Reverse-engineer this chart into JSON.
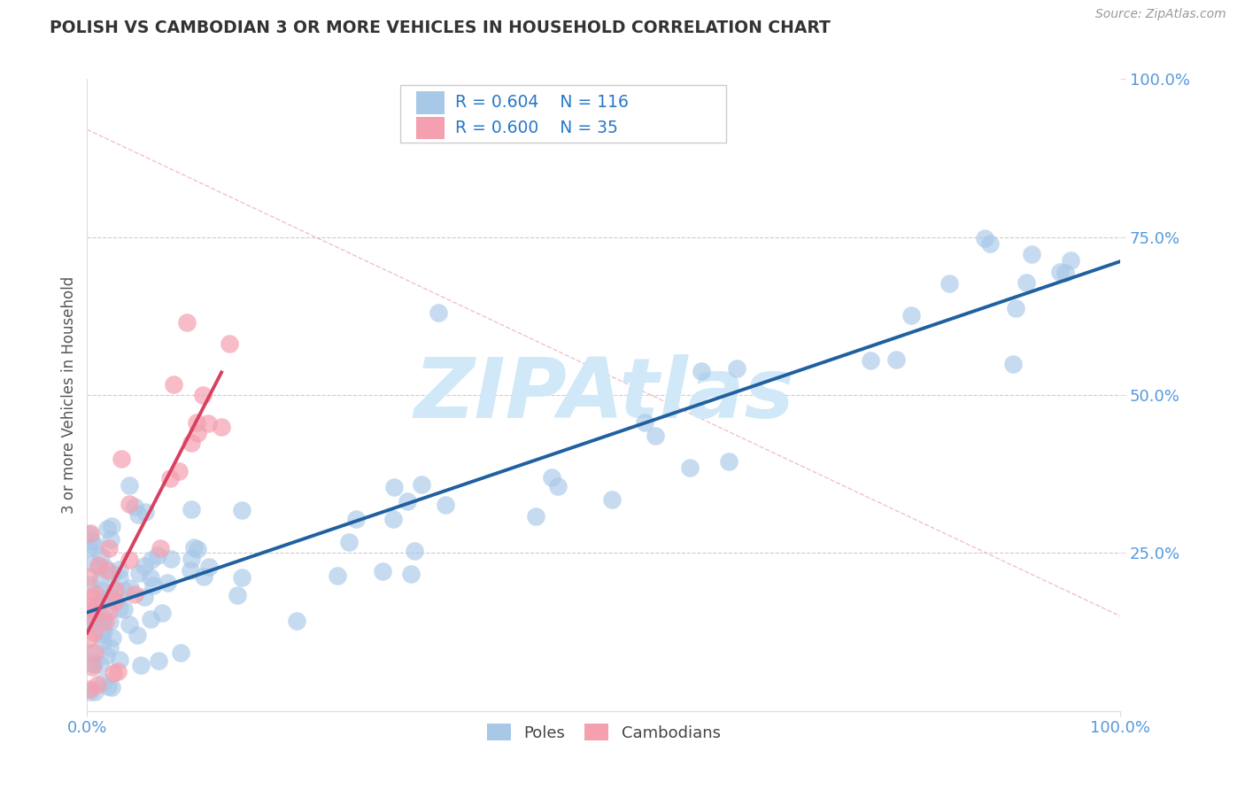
{
  "title": "POLISH VS CAMBODIAN 3 OR MORE VEHICLES IN HOUSEHOLD CORRELATION CHART",
  "source": "Source: ZipAtlas.com",
  "ylabel": "3 or more Vehicles in Household",
  "poles_R": 0.604,
  "poles_N": 116,
  "cambodians_R": 0.6,
  "cambodians_N": 35,
  "poles_color": "#a8c8e8",
  "poles_line_color": "#2060a0",
  "cambodians_color": "#f4a0b0",
  "cambodians_line_color": "#d94060",
  "legend_R_color": "#2878c8",
  "title_color": "#333333",
  "axis_label_color": "#5599dd",
  "ylabel_color": "#555555",
  "background_color": "#ffffff",
  "watermark_text": "ZIPAtlas",
  "watermark_color": "#d0e8f8",
  "diag_line_color": "#f0b0c0",
  "grid_color": "#cccccc"
}
